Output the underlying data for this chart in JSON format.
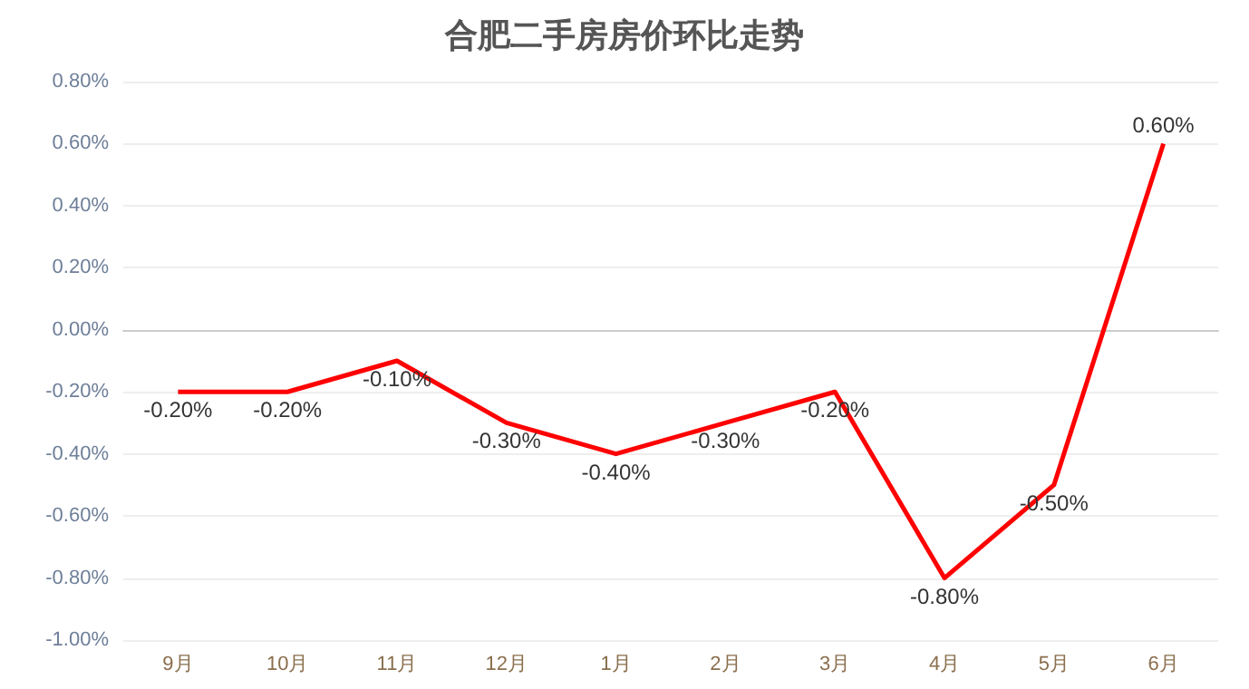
{
  "chart_data": {
    "type": "line",
    "title": "合肥二手房房价环比走势",
    "categories": [
      "9月",
      "10月",
      "11月",
      "12月",
      "1月",
      "2月",
      "3月",
      "4月",
      "5月",
      "6月"
    ],
    "series": [
      {
        "color": "#ff0000",
        "values": [
          -0.2,
          -0.2,
          -0.1,
          -0.3,
          -0.4,
          -0.3,
          -0.2,
          -0.8,
          -0.5,
          0.6
        ],
        "value_labels": [
          "-0.20%",
          "-0.20%",
          "-0.10%",
          "-0.30%",
          "-0.40%",
          "-0.30%",
          "-0.20%",
          "-0.80%",
          "-0.50%",
          "0.60%"
        ]
      }
    ],
    "ylim": [
      -1,
      0.8
    ],
    "yticks": [
      {
        "value": -1,
        "label": "-1.00%"
      },
      {
        "value": -0.8,
        "label": "-0.80%"
      },
      {
        "value": -0.6,
        "label": "-0.60%"
      },
      {
        "value": -0.4,
        "label": "-0.40%"
      },
      {
        "value": -0.2,
        "label": "-0.20%"
      },
      {
        "value": 0,
        "label": "0.00%"
      },
      {
        "value": 0.2,
        "label": "0.20%"
      },
      {
        "value": 0.4,
        "label": "0.40%"
      },
      {
        "value": 0.6,
        "label": "0.60%"
      },
      {
        "value": 0.8,
        "label": "0.80%"
      }
    ],
    "grid": "y",
    "marker": "none",
    "line_style": "solid"
  }
}
